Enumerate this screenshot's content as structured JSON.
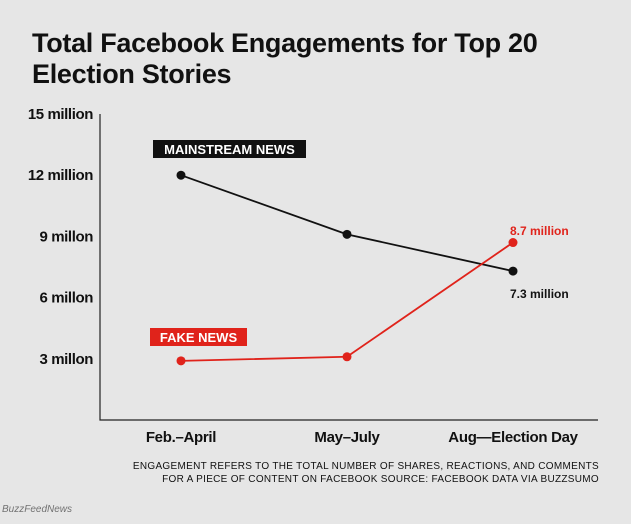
{
  "title": "Total Facebook Engagements for Top 20 Election Stories",
  "note_line1": "ENGAGEMENT REFERS TO THE TOTAL NUMBER OF SHARES, REACTIONS, AND COMMENTS",
  "note_line2": "FOR A PIECE OF CONTENT ON FACEBOOK SOURCE: FACEBOOK DATA VIA BUZZSUMO",
  "credit": "BuzzFeedNews",
  "colors": {
    "mainstream": "#111111",
    "fake": "#e0231b",
    "background": "#e6e6e6"
  },
  "chart_data": {
    "type": "line",
    "title": "Total Facebook Engagements for Top 20 Election Stories",
    "xlabel": "",
    "ylabel": "",
    "categories": [
      "Feb.–April",
      "May–July",
      "Aug—Election Day"
    ],
    "y_ticks": [
      {
        "value": 15,
        "label": "15 million"
      },
      {
        "value": 12,
        "label": "12 million"
      },
      {
        "value": 9,
        "label": "9 millon"
      },
      {
        "value": 6,
        "label": "6 millon"
      },
      {
        "value": 3,
        "label": "3 millon"
      }
    ],
    "ylim": [
      0,
      15
    ],
    "series": [
      {
        "name": "MAINSTREAM NEWS",
        "color": "#111111",
        "values": [
          12,
          9.1,
          7.3
        ],
        "end_label": "7.3 million"
      },
      {
        "name": "FAKE NEWS",
        "color": "#e0231b",
        "values": [
          2.9,
          3.1,
          8.7
        ],
        "end_label": "8.7 million"
      }
    ],
    "units": "million engagements"
  }
}
